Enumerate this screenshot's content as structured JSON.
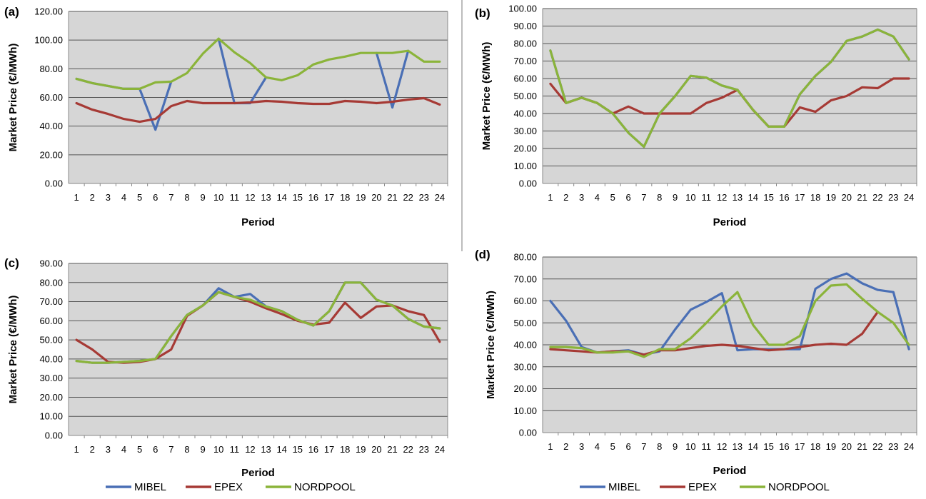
{
  "colors": {
    "MIBEL": "#4a6fb5",
    "EPEX": "#a63a35",
    "NORDPOOL": "#8bb43a",
    "plot_bg": "#d6d6d6",
    "grid": "#555555"
  },
  "legend": {
    "items": [
      "MIBEL",
      "EPEX",
      "NORDPOOL"
    ]
  },
  "chart_data": [
    {
      "panel": "(a)",
      "type": "line",
      "xlabel": "Period",
      "ylabel": "Market Price (€/MWh)",
      "ylim": [
        0,
        120
      ],
      "yticks": [
        "0.00",
        "20.00",
        "40.00",
        "60.00",
        "80.00",
        "100.00",
        "120.00"
      ],
      "x": [
        1,
        2,
        3,
        4,
        5,
        6,
        7,
        8,
        9,
        10,
        11,
        12,
        13,
        14,
        15,
        16,
        17,
        18,
        19,
        20,
        21,
        22,
        23,
        24
      ],
      "grid": true,
      "legend_position": "none",
      "series": [
        {
          "name": "MIBEL",
          "values": [
            73.0,
            70.0,
            68.0,
            66.0,
            66.0,
            37.5,
            71.0,
            null,
            null,
            101.0,
            56.0,
            56.0,
            74.0,
            null,
            null,
            null,
            null,
            null,
            null,
            91.0,
            53.0,
            92.5,
            null,
            null
          ]
        },
        {
          "name": "EPEX",
          "values": [
            56.0,
            51.5,
            48.5,
            45.0,
            43.0,
            45.0,
            54.0,
            57.5,
            56.0,
            56.0,
            56.0,
            56.5,
            57.5,
            57.0,
            56.0,
            55.5,
            55.5,
            57.5,
            57.0,
            56.0,
            57.0,
            58.5,
            59.5,
            55.0
          ]
        },
        {
          "name": "NORDPOOL",
          "values": [
            73.0,
            70.0,
            68.0,
            66.0,
            66.0,
            70.5,
            71.0,
            77.0,
            90.5,
            101.0,
            91.5,
            84.0,
            74.0,
            72.0,
            75.5,
            83.0,
            86.5,
            88.5,
            91.0,
            91.0,
            91.0,
            92.5,
            85.0,
            85.0
          ]
        }
      ]
    },
    {
      "panel": "(b)",
      "type": "line",
      "xlabel": "Period",
      "ylabel": "Market Price (€/MWh)",
      "ylim": [
        0,
        100
      ],
      "yticks": [
        "0.00",
        "10.00",
        "20.00",
        "30.00",
        "40.00",
        "50.00",
        "60.00",
        "70.00",
        "80.00",
        "90.00",
        "100.00"
      ],
      "x": [
        1,
        2,
        3,
        4,
        5,
        6,
        7,
        8,
        9,
        10,
        11,
        12,
        13,
        14,
        15,
        16,
        17,
        18,
        19,
        20,
        21,
        22,
        23,
        24
      ],
      "grid": true,
      "legend_position": "none",
      "series": [
        {
          "name": "MIBEL",
          "values": [
            76.0,
            46.0,
            49.0,
            46.0,
            40.0,
            29.0,
            21.0,
            40.0,
            50.0,
            61.5,
            60.5,
            56.0,
            53.5,
            42.0,
            32.5,
            32.5,
            51.0,
            61.5,
            69.5,
            81.5,
            84.0,
            88.0,
            84.0,
            71.0
          ]
        },
        {
          "name": "EPEX",
          "values": [
            57.0,
            46.0,
            49.0,
            46.0,
            40.0,
            44.0,
            40.0,
            40.0,
            40.0,
            40.0,
            46.0,
            49.0,
            53.5,
            42.0,
            32.5,
            32.5,
            43.5,
            41.0,
            47.5,
            50.0,
            55.0,
            54.5,
            60.0,
            60.0
          ]
        },
        {
          "name": "NORDPOOL",
          "values": [
            76.0,
            46.0,
            49.0,
            46.0,
            40.0,
            29.0,
            21.0,
            40.0,
            50.0,
            61.5,
            60.5,
            56.0,
            53.5,
            42.0,
            32.5,
            32.5,
            51.0,
            61.5,
            69.5,
            81.5,
            84.0,
            88.0,
            84.0,
            71.0
          ]
        }
      ]
    },
    {
      "panel": "(c)",
      "type": "line",
      "xlabel": "Period",
      "ylabel": "Market Price (€/MWh)",
      "ylim": [
        0,
        90
      ],
      "yticks": [
        "0.00",
        "10.00",
        "20.00",
        "30.00",
        "40.00",
        "50.00",
        "60.00",
        "70.00",
        "80.00",
        "90.00"
      ],
      "x": [
        1,
        2,
        3,
        4,
        5,
        6,
        7,
        8,
        9,
        10,
        11,
        12,
        13,
        14,
        15,
        16,
        17,
        18,
        19,
        20,
        21,
        22,
        23,
        24
      ],
      "grid": true,
      "legend_position": "bottom",
      "series": [
        {
          "name": "MIBEL",
          "values": [
            39.0,
            38.0,
            38.0,
            38.5,
            39.0,
            40.0,
            52.0,
            63.0,
            68.0,
            77.0,
            72.5,
            74.0,
            67.5,
            65.0,
            60.5,
            57.5,
            65.0,
            80.0,
            80.0,
            71.0,
            68.0,
            61.0,
            57.0,
            56.0
          ]
        },
        {
          "name": "EPEX",
          "values": [
            50.0,
            45.0,
            38.5,
            38.0,
            38.5,
            40.0,
            45.0,
            62.5,
            68.0,
            75.0,
            72.5,
            70.0,
            66.5,
            63.5,
            60.0,
            58.0,
            59.0,
            69.5,
            61.5,
            67.5,
            68.0,
            65.0,
            63.0,
            49.0
          ]
        },
        {
          "name": "NORDPOOL",
          "values": [
            39.0,
            38.0,
            38.0,
            38.5,
            39.0,
            40.0,
            52.0,
            63.0,
            68.0,
            75.0,
            72.5,
            71.0,
            67.5,
            65.0,
            60.5,
            57.5,
            65.0,
            80.0,
            80.0,
            71.0,
            68.0,
            61.0,
            57.0,
            56.0
          ]
        }
      ]
    },
    {
      "panel": "(d)",
      "type": "line",
      "xlabel": "Period",
      "ylabel": "Market Price (€/MWh)",
      "ylim": [
        0,
        80
      ],
      "yticks": [
        "0.00",
        "10.00",
        "20.00",
        "30.00",
        "40.00",
        "50.00",
        "60.00",
        "70.00",
        "80.00"
      ],
      "x": [
        1,
        2,
        3,
        4,
        5,
        6,
        7,
        8,
        9,
        10,
        11,
        12,
        13,
        14,
        15,
        16,
        17,
        18,
        19,
        20,
        21,
        22,
        23,
        24
      ],
      "grid": true,
      "legend_position": "bottom",
      "series": [
        {
          "name": "MIBEL",
          "values": [
            60.0,
            51.0,
            39.0,
            36.5,
            37.0,
            37.5,
            35.5,
            37.0,
            47.0,
            56.0,
            59.5,
            63.5,
            37.5,
            38.0,
            38.0,
            38.0,
            38.0,
            65.5,
            70.0,
            72.5,
            68.0,
            65.0,
            64.0,
            38.0
          ]
        },
        {
          "name": "EPEX",
          "values": [
            38.0,
            37.5,
            37.0,
            36.5,
            37.0,
            37.0,
            35.5,
            37.5,
            37.5,
            38.5,
            39.5,
            40.0,
            39.5,
            38.5,
            37.5,
            38.0,
            39.0,
            40.0,
            40.5,
            40.0,
            45.0,
            55.0,
            null,
            null
          ]
        },
        {
          "name": "NORDPOOL",
          "values": [
            39.0,
            39.0,
            38.5,
            36.5,
            36.5,
            37.0,
            34.5,
            38.0,
            38.0,
            43.0,
            50.0,
            57.5,
            64.0,
            49.0,
            40.0,
            40.0,
            44.0,
            60.0,
            67.0,
            67.5,
            61.0,
            55.0,
            50.0,
            40.0
          ]
        }
      ]
    }
  ]
}
